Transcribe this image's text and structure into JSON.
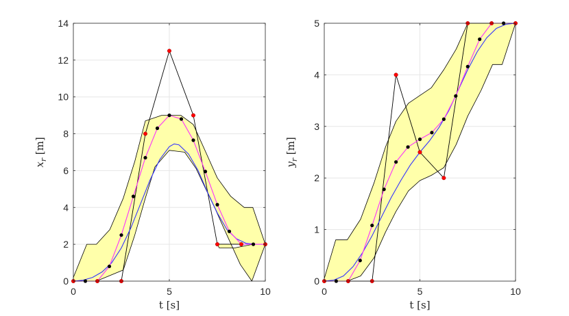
{
  "figure": {
    "background": "#ffffff"
  },
  "colors": {
    "band_fill": "#ffffaa",
    "band_edge": "#000000",
    "blue_curve": "#3333ff",
    "magenta_curve": "#ff33ff",
    "control_points": "#ff0000",
    "sample_points": "#000000",
    "control_polygon": "#000000",
    "grid": "#e6e6e6",
    "axis": "#262626"
  },
  "chart_data": [
    {
      "type": "line",
      "title": "",
      "xlabel": "t [s]",
      "ylabel_main": "x",
      "ylabel_sub": "r",
      "ylabel_unit": " [m]",
      "xlim": [
        0,
        10
      ],
      "ylim": [
        0,
        14
      ],
      "xticks": [
        0,
        5,
        10
      ],
      "yticks": [
        0,
        2,
        4,
        6,
        8,
        10,
        12,
        14
      ],
      "grid": true,
      "corridor_upper": [
        [
          0,
          0.2
        ],
        [
          0.7,
          2
        ],
        [
          1.2,
          2
        ],
        [
          1.9,
          2.8
        ],
        [
          2.6,
          4.5
        ],
        [
          3.2,
          6.5
        ],
        [
          3.75,
          8.7
        ],
        [
          4.6,
          9
        ],
        [
          5.6,
          9
        ],
        [
          6.25,
          8.5
        ],
        [
          6.9,
          7
        ],
        [
          7.5,
          5.6
        ],
        [
          8.2,
          4.6
        ],
        [
          8.9,
          4
        ],
        [
          9.35,
          4
        ],
        [
          10,
          2
        ]
      ],
      "corridor_lower": [
        [
          0,
          0
        ],
        [
          1.2,
          0
        ],
        [
          2.6,
          0.6
        ],
        [
          3.2,
          2.5
        ],
        [
          3.75,
          4.5
        ],
        [
          4.25,
          6.2
        ],
        [
          5,
          7.1
        ],
        [
          5.8,
          7
        ],
        [
          6.4,
          6.1
        ],
        [
          6.9,
          5
        ],
        [
          7.4,
          3.9
        ],
        [
          8,
          2.5
        ],
        [
          8.7,
          0.9
        ],
        [
          9.3,
          0
        ],
        [
          10,
          2
        ],
        [
          9.35,
          2
        ],
        [
          8.4,
          1.8
        ],
        [
          7.6,
          1.8
        ],
        [
          7.5,
          2
        ]
      ],
      "control_polygon": [
        [
          0,
          0
        ],
        [
          1.25,
          0
        ],
        [
          2.5,
          0
        ],
        [
          3.75,
          8
        ],
        [
          5,
          12.5
        ],
        [
          6.25,
          9
        ],
        [
          7.5,
          2
        ],
        [
          8.75,
          2
        ],
        [
          10,
          2
        ]
      ],
      "control_points": [
        [
          0,
          0
        ],
        [
          1.25,
          0
        ],
        [
          2.5,
          0
        ],
        [
          3.75,
          8
        ],
        [
          5,
          12.5
        ],
        [
          6.25,
          9
        ],
        [
          7.5,
          2
        ],
        [
          8.75,
          2
        ],
        [
          10,
          2
        ]
      ],
      "sample_polygon": [
        [
          0,
          0
        ],
        [
          0.625,
          0
        ],
        [
          1.25,
          0
        ],
        [
          1.875,
          0.8
        ],
        [
          2.5,
          2.5
        ],
        [
          3.125,
          4.6
        ],
        [
          3.75,
          6.7
        ],
        [
          4.375,
          8.3
        ],
        [
          5,
          9
        ],
        [
          5.625,
          8.8
        ],
        [
          6.25,
          7.65
        ],
        [
          6.875,
          5.95
        ],
        [
          7.5,
          4.15
        ],
        [
          8.125,
          2.7
        ],
        [
          8.75,
          2
        ],
        [
          9.375,
          2
        ],
        [
          10,
          2
        ]
      ],
      "sample_points": [
        [
          0,
          0
        ],
        [
          0.625,
          0
        ],
        [
          1.25,
          0
        ],
        [
          1.875,
          0.8
        ],
        [
          2.5,
          2.5
        ],
        [
          3.125,
          4.6
        ],
        [
          3.75,
          6.7
        ],
        [
          4.375,
          8.3
        ],
        [
          5,
          9
        ],
        [
          5.625,
          8.8
        ],
        [
          6.25,
          7.65
        ],
        [
          6.875,
          5.95
        ],
        [
          7.5,
          4.15
        ],
        [
          8.125,
          2.7
        ],
        [
          8.75,
          2
        ],
        [
          9.375,
          2
        ],
        [
          10,
          2
        ]
      ],
      "magenta_curve": [
        [
          0,
          0
        ],
        [
          0.625,
          0
        ],
        [
          1.25,
          0
        ],
        [
          1.875,
          0.8
        ],
        [
          2.5,
          2.5
        ],
        [
          3.125,
          4.6
        ],
        [
          3.75,
          6.7
        ],
        [
          4.375,
          8.3
        ],
        [
          5,
          9
        ],
        [
          5.625,
          8.8
        ],
        [
          6.25,
          7.65
        ],
        [
          6.875,
          5.95
        ],
        [
          7.5,
          4.15
        ],
        [
          8.125,
          2.7
        ],
        [
          8.75,
          2
        ],
        [
          9.375,
          2
        ],
        [
          10,
          2
        ]
      ],
      "blue_curve": [
        [
          0,
          0
        ],
        [
          0.5,
          0.05
        ],
        [
          1,
          0.2
        ],
        [
          1.5,
          0.5
        ],
        [
          2,
          1
        ],
        [
          2.5,
          1.8
        ],
        [
          3,
          2.9
        ],
        [
          3.5,
          4.2
        ],
        [
          4,
          5.5
        ],
        [
          4.5,
          6.6
        ],
        [
          5,
          7.3
        ],
        [
          5.25,
          7.45
        ],
        [
          5.5,
          7.4
        ],
        [
          6,
          6.9
        ],
        [
          6.5,
          6
        ],
        [
          7,
          4.8
        ],
        [
          7.5,
          3.7
        ],
        [
          8,
          2.8
        ],
        [
          8.5,
          2.3
        ],
        [
          9,
          2.05
        ],
        [
          9.5,
          2
        ],
        [
          10,
          2
        ]
      ]
    },
    {
      "type": "line",
      "title": "",
      "xlabel": "t [s]",
      "ylabel_main": "y",
      "ylabel_sub": "r",
      "ylabel_unit": " [m]",
      "xlim": [
        0,
        10
      ],
      "ylim": [
        0,
        5
      ],
      "xticks": [
        0,
        5,
        10
      ],
      "yticks": [
        0,
        1,
        2,
        3,
        4,
        5
      ],
      "grid": true,
      "corridor_upper": [
        [
          0,
          0.05
        ],
        [
          0.6,
          0.8
        ],
        [
          1.2,
          0.8
        ],
        [
          1.9,
          1.2
        ],
        [
          2.6,
          1.9
        ],
        [
          3.2,
          2.6
        ],
        [
          3.75,
          3.1
        ],
        [
          4.4,
          3.45
        ],
        [
          5,
          3.6
        ],
        [
          5.6,
          3.75
        ],
        [
          6.25,
          4.1
        ],
        [
          6.9,
          4.5
        ],
        [
          7.5,
          5
        ],
        [
          8.6,
          5
        ],
        [
          10,
          5
        ]
      ],
      "corridor_lower": [
        [
          0,
          0
        ],
        [
          1.2,
          0
        ],
        [
          1.9,
          0.1
        ],
        [
          2.6,
          0.45
        ],
        [
          3.2,
          0.95
        ],
        [
          3.75,
          1.35
        ],
        [
          4.4,
          1.75
        ],
        [
          5,
          1.95
        ],
        [
          5.6,
          2.05
        ],
        [
          6.25,
          2.2
        ],
        [
          6.9,
          2.65
        ],
        [
          7.5,
          3.2
        ],
        [
          8.2,
          3.7
        ],
        [
          8.8,
          4.2
        ],
        [
          9.3,
          4.2
        ],
        [
          10,
          5
        ]
      ],
      "control_polygon": [
        [
          0,
          0
        ],
        [
          1.25,
          0
        ],
        [
          2.5,
          0
        ],
        [
          3.75,
          4
        ],
        [
          5,
          2.5
        ],
        [
          6.25,
          2
        ],
        [
          7.5,
          5
        ],
        [
          8.75,
          5
        ],
        [
          10,
          5
        ]
      ],
      "control_points": [
        [
          0,
          0
        ],
        [
          1.25,
          0
        ],
        [
          2.5,
          0
        ],
        [
          3.75,
          4
        ],
        [
          5,
          2.5
        ],
        [
          6.25,
          2
        ],
        [
          7.5,
          5
        ],
        [
          8.75,
          5
        ],
        [
          10,
          5
        ]
      ],
      "sample_polygon": [
        [
          0,
          0
        ],
        [
          0.625,
          0
        ],
        [
          1.25,
          0
        ],
        [
          1.875,
          0.4
        ],
        [
          2.5,
          1.08
        ],
        [
          3.125,
          1.78
        ],
        [
          3.75,
          2.31
        ],
        [
          4.375,
          2.6
        ],
        [
          5,
          2.75
        ],
        [
          5.625,
          2.88
        ],
        [
          6.25,
          3.14
        ],
        [
          6.875,
          3.59
        ],
        [
          7.5,
          4.16
        ],
        [
          8.125,
          4.69
        ],
        [
          8.75,
          5
        ],
        [
          9.375,
          5
        ],
        [
          10,
          5
        ]
      ],
      "sample_points": [
        [
          0,
          0
        ],
        [
          0.625,
          0
        ],
        [
          1.25,
          0
        ],
        [
          1.875,
          0.4
        ],
        [
          2.5,
          1.08
        ],
        [
          3.125,
          1.78
        ],
        [
          3.75,
          2.31
        ],
        [
          4.375,
          2.6
        ],
        [
          5,
          2.75
        ],
        [
          5.625,
          2.88
        ],
        [
          6.25,
          3.14
        ],
        [
          6.875,
          3.59
        ],
        [
          7.5,
          4.16
        ],
        [
          8.125,
          4.69
        ],
        [
          8.75,
          5
        ],
        [
          9.375,
          5
        ],
        [
          10,
          5
        ]
      ],
      "magenta_curve": [
        [
          0,
          0
        ],
        [
          0.625,
          0
        ],
        [
          1.25,
          0
        ],
        [
          1.875,
          0.4
        ],
        [
          2.5,
          1.08
        ],
        [
          3.125,
          1.78
        ],
        [
          3.75,
          2.31
        ],
        [
          4.375,
          2.6
        ],
        [
          5,
          2.75
        ],
        [
          5.625,
          2.88
        ],
        [
          6.25,
          3.14
        ],
        [
          6.875,
          3.59
        ],
        [
          7.5,
          4.16
        ],
        [
          8.125,
          4.69
        ],
        [
          8.75,
          5
        ],
        [
          9.375,
          5
        ],
        [
          10,
          5
        ]
      ],
      "blue_curve": [
        [
          0,
          0
        ],
        [
          0.5,
          0.02
        ],
        [
          1,
          0.1
        ],
        [
          1.5,
          0.28
        ],
        [
          2,
          0.55
        ],
        [
          2.5,
          0.88
        ],
        [
          3,
          1.25
        ],
        [
          3.5,
          1.62
        ],
        [
          4,
          1.95
        ],
        [
          4.5,
          2.25
        ],
        [
          5,
          2.5
        ],
        [
          5.5,
          2.72
        ],
        [
          6,
          2.98
        ],
        [
          6.5,
          3.3
        ],
        [
          7,
          3.7
        ],
        [
          7.5,
          4.1
        ],
        [
          8,
          4.45
        ],
        [
          8.5,
          4.72
        ],
        [
          9,
          4.9
        ],
        [
          9.5,
          4.98
        ],
        [
          10,
          5
        ]
      ]
    }
  ]
}
